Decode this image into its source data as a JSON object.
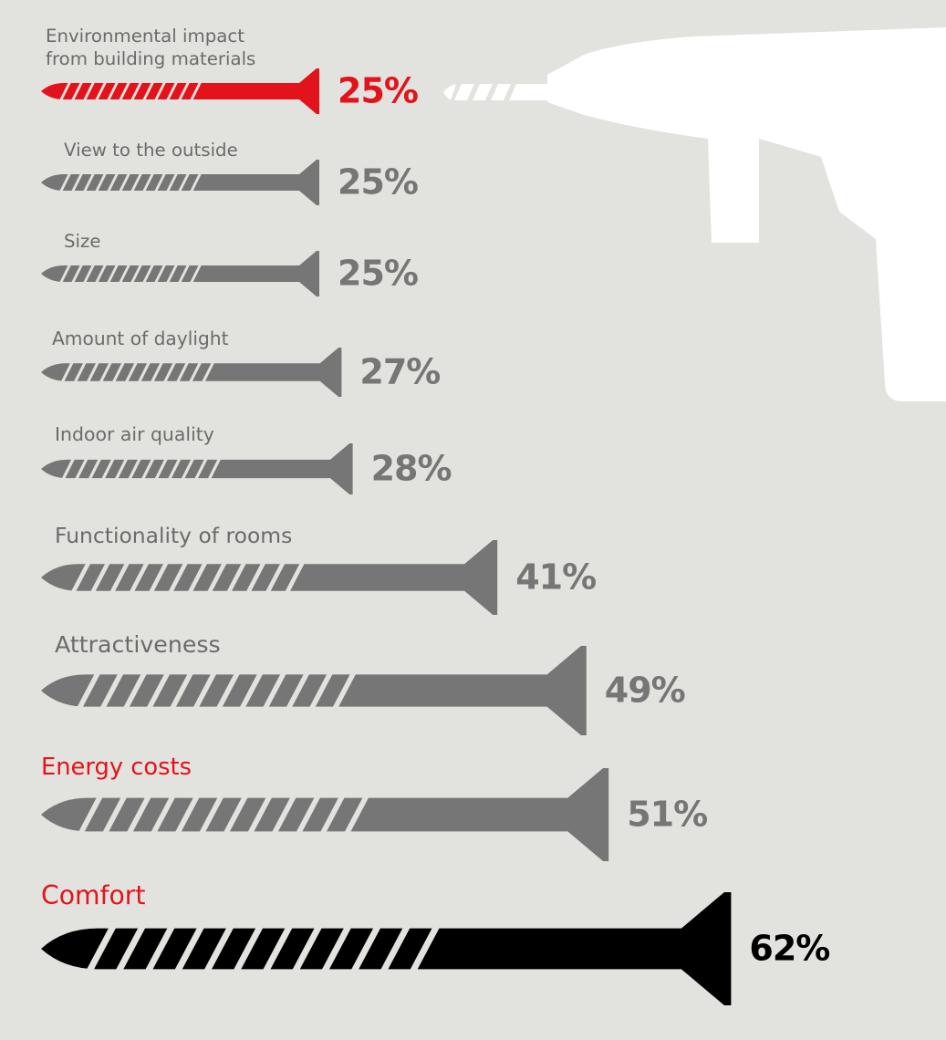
{
  "chart_data": {
    "type": "screw-bar",
    "categories": [
      "Environmental impact\nfrom building materials",
      "View to the outside",
      "Size",
      "Amount of daylight",
      "Indoor air quality",
      "Functionality of rooms",
      "Attractiveness",
      "Energy costs",
      "Comfort"
    ],
    "values": [
      25,
      25,
      25,
      27,
      28,
      41,
      49,
      51,
      62
    ],
    "value_labels": [
      "25%",
      "25%",
      "25%",
      "27%",
      "28%",
      "41%",
      "49%",
      "51%",
      "62%"
    ],
    "colors": [
      "#e3131b",
      "#767676",
      "#767676",
      "#767676",
      "#767676",
      "#767676",
      "#767676",
      "#767676",
      "#000000"
    ],
    "label_colors": [
      "#6b6b6b",
      "#6b6b6b",
      "#6b6b6b",
      "#6b6b6b",
      "#6b6b6b",
      "#6b6b6b",
      "#6b6b6b",
      "#e3131b",
      "#e3131b"
    ]
  }
}
